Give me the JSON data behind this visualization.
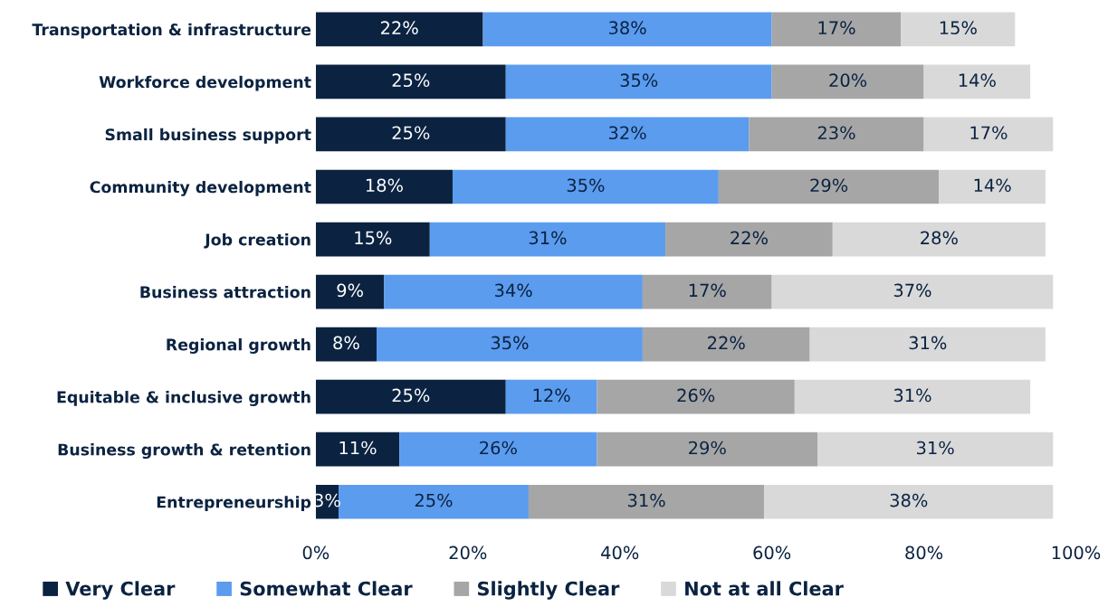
{
  "chart_data": {
    "type": "bar",
    "orientation": "horizontal",
    "stacked": true,
    "categories": [
      "Transportation & infrastructure",
      "Workforce development",
      "Small business support",
      "Community development",
      "Job creation",
      "Business attraction",
      "Regional growth",
      "Equitable & inclusive growth",
      "Business growth & retention",
      "Entrepreneurship"
    ],
    "series": [
      {
        "name": "Very Clear",
        "color": "#0b2341",
        "values": [
          22,
          25,
          25,
          18,
          15,
          9,
          8,
          25,
          11,
          3
        ],
        "value_labels": [
          "22%",
          "25%",
          "25%",
          "18%",
          "15%",
          "9%",
          "8%",
          "25%",
          "11%",
          "3%"
        ]
      },
      {
        "name": "Somewhat Clear",
        "color": "#5b9cef",
        "values": [
          38,
          35,
          32,
          35,
          31,
          34,
          35,
          12,
          26,
          25
        ],
        "value_labels": [
          "38%",
          "35%",
          "32%",
          "35%",
          "31%",
          "34%",
          "35%",
          "12%",
          "26%",
          "25%"
        ]
      },
      {
        "name": "Slightly Clear",
        "color": "#a6a6a6",
        "values": [
          17,
          20,
          23,
          29,
          22,
          17,
          22,
          26,
          29,
          31
        ],
        "value_labels": [
          "17%",
          "20%",
          "23%",
          "29%",
          "22%",
          "17%",
          "22%",
          "26%",
          "29%",
          "31%"
        ]
      },
      {
        "name": "Not at all Clear",
        "color": "#d9d9d9",
        "values": [
          15,
          14,
          17,
          14,
          28,
          37,
          31,
          31,
          31,
          38
        ],
        "value_labels": [
          "15%",
          "14%",
          "17%",
          "14%",
          "28%",
          "37%",
          "31%",
          "31%",
          "31%",
          "38%"
        ]
      }
    ],
    "xlim": [
      0,
      100
    ],
    "xticks": [
      {
        "value": 0,
        "label": "0%"
      },
      {
        "value": 20,
        "label": "20%"
      },
      {
        "value": 40,
        "label": "40%"
      },
      {
        "value": 60,
        "label": "60%"
      },
      {
        "value": 80,
        "label": "80%"
      },
      {
        "value": 100,
        "label": "100%"
      }
    ],
    "grid": false,
    "legend": "bottom"
  }
}
